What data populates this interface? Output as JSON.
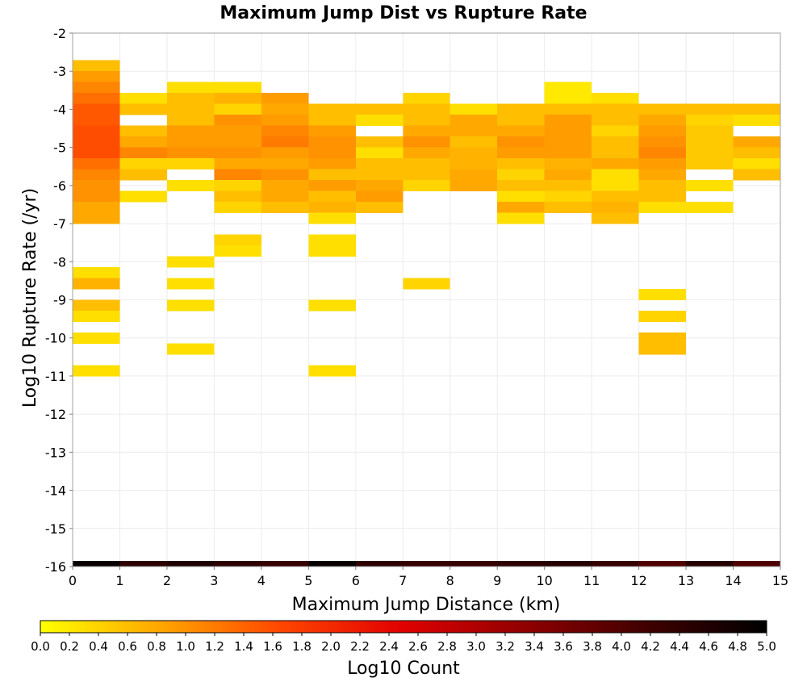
{
  "chart_data": {
    "type": "heatmap",
    "title": "Maximum Jump Dist vs Rupture Rate",
    "xlabel": "Maximum Jump Distance (km)",
    "ylabel": "Log10 Rupture Rate (/yr)",
    "xlim": [
      0,
      15
    ],
    "ylim": [
      -16,
      -2
    ],
    "x_ticks": [
      "0",
      "1",
      "2",
      "3",
      "4",
      "5",
      "6",
      "7",
      "8",
      "9",
      "10",
      "11",
      "12",
      "13",
      "14",
      "15"
    ],
    "y_ticks": [
      "-2",
      "-3",
      "-4",
      "-5",
      "-6",
      "-7",
      "-8",
      "-9",
      "-10",
      "-11",
      "-12",
      "-13",
      "-14",
      "-15",
      "-16"
    ],
    "x_bin_width_km": 1,
    "y_bin_height_log10": 0.285714,
    "grid": true,
    "colorbar": {
      "label": "Log10 Count",
      "min": 0.0,
      "max": 5.0,
      "ticks": [
        "0.0",
        "0.2",
        "0.4",
        "0.6",
        "0.8",
        "1.0",
        "1.2",
        "1.4",
        "1.6",
        "1.8",
        "2.0",
        "2.2",
        "2.4",
        "2.6",
        "2.8",
        "3.0",
        "3.2",
        "3.4",
        "3.6",
        "3.8",
        "4.0",
        "4.2",
        "4.4",
        "4.6",
        "4.8",
        "5.0"
      ],
      "colors": [
        "#ffff00",
        "#ffa500",
        "#ff4500",
        "#e00000",
        "#900000",
        "#400000",
        "#000000"
      ]
    },
    "columns": [
      {
        "x": 0,
        "bins": [
          [
            -3,
            -2.714,
            0.6
          ],
          [
            -3.286,
            -3,
            0.9
          ],
          [
            -3.571,
            -3.286,
            1.1
          ],
          [
            -3.857,
            -3.571,
            1.3
          ],
          [
            -4.143,
            -3.857,
            1.5
          ],
          [
            -4.429,
            -4.143,
            1.5
          ],
          [
            -4.714,
            -4.429,
            1.6
          ],
          [
            -5.0,
            -4.714,
            1.6
          ],
          [
            -5.286,
            -5.0,
            1.6
          ],
          [
            -5.571,
            -5.286,
            1.3
          ],
          [
            -5.857,
            -5.571,
            1.1
          ],
          [
            -6.143,
            -5.857,
            1.0
          ],
          [
            -6.429,
            -6.143,
            1.0
          ],
          [
            -6.714,
            -6.429,
            0.8
          ],
          [
            -7.0,
            -6.714,
            0.8
          ],
          [
            -8.429,
            -8.143,
            0.3
          ],
          [
            -8.714,
            -8.429,
            0.7
          ],
          [
            -9.286,
            -9.0,
            0.6
          ],
          [
            -9.571,
            -9.286,
            0.3
          ],
          [
            -10.143,
            -9.857,
            0.3
          ],
          [
            -11.0,
            -10.714,
            0.3
          ],
          [
            -16.0,
            -15.857,
            4.9
          ]
        ]
      },
      {
        "x": 1,
        "bins": [
          [
            -3.857,
            -3.571,
            0.3
          ],
          [
            -4.143,
            -3.857,
            0.6
          ],
          [
            -4.714,
            -4.429,
            0.6
          ],
          [
            -5.0,
            -4.714,
            0.8
          ],
          [
            -5.286,
            -5.0,
            1.1
          ],
          [
            -5.571,
            -5.286,
            0.4
          ],
          [
            -5.857,
            -5.571,
            0.6
          ],
          [
            -6.429,
            -6.143,
            0.3
          ],
          [
            -16.0,
            -15.857,
            4.4
          ]
        ]
      },
      {
        "x": 2,
        "bins": [
          [
            -3.571,
            -3.286,
            0.3
          ],
          [
            -3.857,
            -3.571,
            0.6
          ],
          [
            -4.143,
            -3.857,
            0.6
          ],
          [
            -4.429,
            -4.143,
            0.6
          ],
          [
            -4.714,
            -4.429,
            0.9
          ],
          [
            -5.0,
            -4.714,
            0.9
          ],
          [
            -5.286,
            -5.0,
            1.0
          ],
          [
            -5.571,
            -5.286,
            0.4
          ],
          [
            -6.143,
            -5.857,
            0.3
          ],
          [
            -8.143,
            -7.857,
            0.3
          ],
          [
            -8.714,
            -8.429,
            0.3
          ],
          [
            -9.286,
            -9.0,
            0.3
          ],
          [
            -10.429,
            -10.143,
            0.3
          ],
          [
            -16.0,
            -15.857,
            4.6
          ]
        ]
      },
      {
        "x": 3,
        "bins": [
          [
            -3.571,
            -3.286,
            0.3
          ],
          [
            -3.857,
            -3.571,
            0.7
          ],
          [
            -4.143,
            -3.857,
            0.4
          ],
          [
            -4.429,
            -4.143,
            1.0
          ],
          [
            -4.714,
            -4.429,
            0.9
          ],
          [
            -5.0,
            -4.714,
            0.9
          ],
          [
            -5.286,
            -5.0,
            1.0
          ],
          [
            -5.571,
            -5.286,
            0.8
          ],
          [
            -5.857,
            -5.571,
            1.1
          ],
          [
            -6.143,
            -5.857,
            0.4
          ],
          [
            -6.429,
            -6.143,
            0.6
          ],
          [
            -6.714,
            -6.429,
            0.4
          ],
          [
            -7.571,
            -7.286,
            0.4
          ],
          [
            -7.857,
            -7.571,
            0.3
          ],
          [
            -16.0,
            -15.857,
            4.4
          ]
        ]
      },
      {
        "x": 4,
        "bins": [
          [
            -3.857,
            -3.571,
            0.9
          ],
          [
            -4.143,
            -3.857,
            0.8
          ],
          [
            -4.429,
            -4.143,
            0.9
          ],
          [
            -4.714,
            -4.429,
            1.1
          ],
          [
            -5.0,
            -4.714,
            1.2
          ],
          [
            -5.286,
            -5.0,
            0.9
          ],
          [
            -5.571,
            -5.286,
            0.8
          ],
          [
            -5.857,
            -5.571,
            1.0
          ],
          [
            -6.143,
            -5.857,
            0.8
          ],
          [
            -6.429,
            -6.143,
            0.8
          ],
          [
            -6.714,
            -6.429,
            0.6
          ],
          [
            -16.0,
            -15.857,
            4.3
          ]
        ]
      },
      {
        "x": 5,
        "bins": [
          [
            -4.143,
            -3.857,
            0.6
          ],
          [
            -4.429,
            -4.143,
            0.6
          ],
          [
            -4.714,
            -4.429,
            0.9
          ],
          [
            -5.0,
            -4.714,
            1.0
          ],
          [
            -5.286,
            -5.0,
            1.0
          ],
          [
            -5.571,
            -5.286,
            0.9
          ],
          [
            -5.857,
            -5.571,
            0.6
          ],
          [
            -6.143,
            -5.857,
            0.9
          ],
          [
            -6.429,
            -6.143,
            0.6
          ],
          [
            -6.714,
            -6.429,
            0.7
          ],
          [
            -7.0,
            -6.714,
            0.3
          ],
          [
            -7.571,
            -7.286,
            0.3
          ],
          [
            -7.857,
            -7.571,
            0.3
          ],
          [
            -9.286,
            -9.0,
            0.3
          ],
          [
            -11.0,
            -10.714,
            0.3
          ],
          [
            -16.0,
            -15.857,
            4.9
          ]
        ]
      },
      {
        "x": 6,
        "bins": [
          [
            -4.143,
            -3.857,
            0.6
          ],
          [
            -4.429,
            -4.143,
            0.3
          ],
          [
            -5.0,
            -4.714,
            0.6
          ],
          [
            -5.286,
            -5.0,
            0.3
          ],
          [
            -5.571,
            -5.286,
            0.6
          ],
          [
            -5.857,
            -5.571,
            0.6
          ],
          [
            -6.143,
            -5.857,
            0.8
          ],
          [
            -6.429,
            -6.143,
            0.9
          ],
          [
            -6.714,
            -6.429,
            0.6
          ],
          [
            -16.0,
            -15.857,
            4.4
          ]
        ]
      },
      {
        "x": 7,
        "bins": [
          [
            -3.857,
            -3.571,
            0.4
          ],
          [
            -4.143,
            -3.857,
            0.6
          ],
          [
            -4.429,
            -4.143,
            0.6
          ],
          [
            -4.714,
            -4.429,
            0.8
          ],
          [
            -5.0,
            -4.714,
            1.0
          ],
          [
            -5.286,
            -5.0,
            0.8
          ],
          [
            -5.571,
            -5.286,
            0.6
          ],
          [
            -5.857,
            -5.571,
            0.6
          ],
          [
            -6.143,
            -5.857,
            0.4
          ],
          [
            -8.714,
            -8.429,
            0.4
          ],
          [
            -16.0,
            -15.857,
            4.3
          ]
        ]
      },
      {
        "x": 8,
        "bins": [
          [
            -4.143,
            -3.857,
            0.3
          ],
          [
            -4.429,
            -4.143,
            0.8
          ],
          [
            -4.714,
            -4.429,
            0.8
          ],
          [
            -5.0,
            -4.714,
            0.6
          ],
          [
            -5.286,
            -5.0,
            0.7
          ],
          [
            -5.571,
            -5.286,
            0.7
          ],
          [
            -5.857,
            -5.571,
            0.8
          ],
          [
            -6.143,
            -5.857,
            0.8
          ],
          [
            -16.0,
            -15.857,
            4.3
          ]
        ]
      },
      {
        "x": 9,
        "bins": [
          [
            -4.143,
            -3.857,
            0.6
          ],
          [
            -4.429,
            -4.143,
            0.6
          ],
          [
            -4.714,
            -4.429,
            0.8
          ],
          [
            -5.0,
            -4.714,
            1.0
          ],
          [
            -5.286,
            -5.0,
            0.9
          ],
          [
            -5.571,
            -5.286,
            0.6
          ],
          [
            -5.857,
            -5.571,
            0.4
          ],
          [
            -6.143,
            -5.857,
            0.6
          ],
          [
            -6.429,
            -6.143,
            0.3
          ],
          [
            -6.714,
            -6.429,
            0.8
          ],
          [
            -7.0,
            -6.714,
            0.3
          ],
          [
            -16.0,
            -15.857,
            4.4
          ]
        ]
      },
      {
        "x": 10,
        "bins": [
          [
            -3.571,
            -3.286,
            0.2
          ],
          [
            -3.857,
            -3.571,
            0.2
          ],
          [
            -4.143,
            -3.857,
            0.6
          ],
          [
            -4.429,
            -4.143,
            0.9
          ],
          [
            -4.714,
            -4.429,
            0.9
          ],
          [
            -5.0,
            -4.714,
            0.9
          ],
          [
            -5.286,
            -5.0,
            0.9
          ],
          [
            -5.571,
            -5.286,
            0.7
          ],
          [
            -5.857,
            -5.571,
            0.8
          ],
          [
            -6.143,
            -5.857,
            0.6
          ],
          [
            -6.429,
            -6.143,
            0.4
          ],
          [
            -6.714,
            -6.429,
            0.6
          ],
          [
            -16.0,
            -15.857,
            4.5
          ]
        ]
      },
      {
        "x": 11,
        "bins": [
          [
            -3.857,
            -3.571,
            0.3
          ],
          [
            -4.143,
            -3.857,
            0.6
          ],
          [
            -4.429,
            -4.143,
            0.6
          ],
          [
            -4.714,
            -4.429,
            0.4
          ],
          [
            -5.0,
            -4.714,
            0.6
          ],
          [
            -5.286,
            -5.0,
            0.6
          ],
          [
            -5.571,
            -5.286,
            0.8
          ],
          [
            -5.857,
            -5.571,
            0.3
          ],
          [
            -6.143,
            -5.857,
            0.3
          ],
          [
            -6.429,
            -6.143,
            0.6
          ],
          [
            -6.714,
            -6.429,
            0.7
          ],
          [
            -7.0,
            -6.714,
            0.6
          ],
          [
            -16.0,
            -15.857,
            4.3
          ]
        ]
      },
      {
        "x": 12,
        "bins": [
          [
            -4.143,
            -3.857,
            0.6
          ],
          [
            -4.429,
            -4.143,
            0.8
          ],
          [
            -4.714,
            -4.429,
            0.9
          ],
          [
            -5.0,
            -4.714,
            1.0
          ],
          [
            -5.286,
            -5.0,
            1.1
          ],
          [
            -5.571,
            -5.286,
            0.9
          ],
          [
            -5.857,
            -5.571,
            0.8
          ],
          [
            -6.143,
            -5.857,
            0.6
          ],
          [
            -6.429,
            -6.143,
            0.6
          ],
          [
            -6.714,
            -6.429,
            0.3
          ],
          [
            -9.0,
            -8.714,
            0.3
          ],
          [
            -9.571,
            -9.286,
            0.4
          ],
          [
            -10.143,
            -9.857,
            0.6
          ],
          [
            -10.429,
            -10.143,
            0.6
          ],
          [
            -16.0,
            -15.857,
            4.0
          ]
        ]
      },
      {
        "x": 13,
        "bins": [
          [
            -4.143,
            -3.857,
            0.6
          ],
          [
            -4.429,
            -4.143,
            0.4
          ],
          [
            -4.714,
            -4.429,
            0.5
          ],
          [
            -5.0,
            -4.714,
            0.5
          ],
          [
            -5.286,
            -5.0,
            0.5
          ],
          [
            -5.571,
            -5.286,
            0.5
          ],
          [
            -6.143,
            -5.857,
            0.3
          ],
          [
            -6.714,
            -6.429,
            0.3
          ],
          [
            -16.0,
            -15.857,
            4.5
          ]
        ]
      },
      {
        "x": 14,
        "bins": [
          [
            -4.143,
            -3.857,
            0.6
          ],
          [
            -4.429,
            -4.143,
            0.3
          ],
          [
            -5.0,
            -4.714,
            0.8
          ],
          [
            -5.286,
            -5.0,
            0.6
          ],
          [
            -5.571,
            -5.286,
            0.3
          ],
          [
            -5.857,
            -5.571,
            0.6
          ],
          [
            -16.0,
            -15.857,
            4.0
          ]
        ]
      }
    ]
  }
}
